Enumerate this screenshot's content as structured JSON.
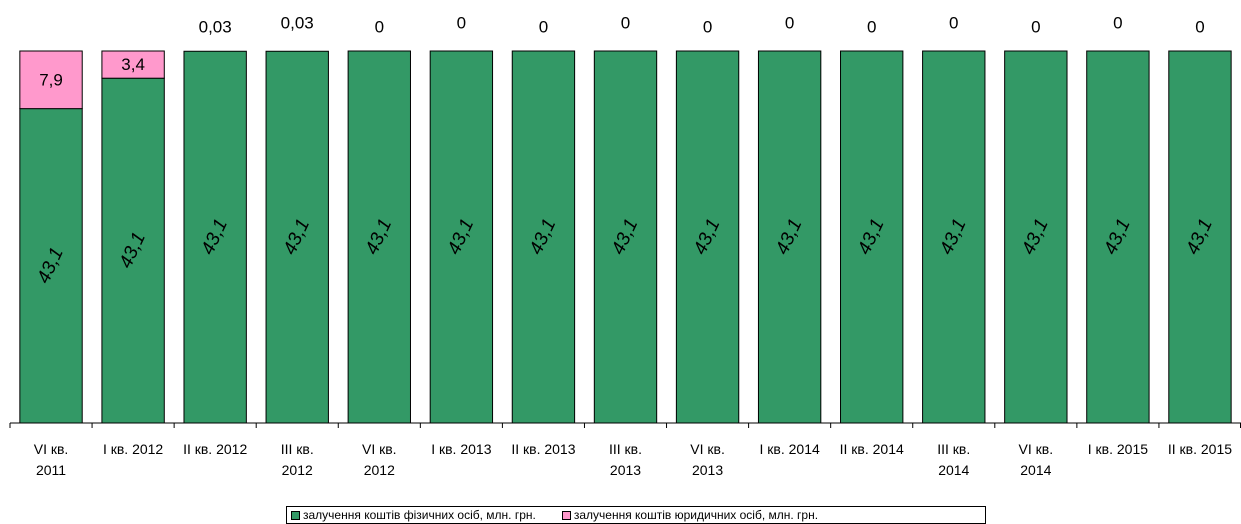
{
  "chart_data": {
    "type": "bar",
    "stacked": true,
    "categories": [
      "VI кв. 2011",
      "I кв. 2012",
      "II кв. 2012",
      "III кв. 2012",
      "VI кв. 2012",
      "I кв. 2013",
      "II кв. 2013",
      "III кв. 2013",
      "VI кв. 2013",
      "I кв. 2014",
      "II кв. 2014",
      "III кв. 2014",
      "VI кв. 2014",
      "I кв. 2015",
      "II кв. 2015"
    ],
    "category_lines": [
      [
        "VI кв.",
        "2011"
      ],
      [
        "I кв. 2012"
      ],
      [
        "II кв. 2012"
      ],
      [
        "III кв.",
        "2012"
      ],
      [
        "VI кв.",
        "2012"
      ],
      [
        "I кв. 2013"
      ],
      [
        "II кв. 2013"
      ],
      [
        "III кв.",
        "2013"
      ],
      [
        "VI кв.",
        "2013"
      ],
      [
        "I кв. 2014"
      ],
      [
        "II кв. 2014"
      ],
      [
        "III кв.",
        "2014"
      ],
      [
        "VI кв.",
        "2014"
      ],
      [
        "I кв. 2015"
      ],
      [
        "II кв. 2015"
      ]
    ],
    "series": [
      {
        "name": "залучення коштів фізичних осіб, млн. грн.",
        "color": "#339966",
        "values": [
          43.1,
          43.1,
          43.1,
          43.1,
          43.1,
          43.1,
          43.1,
          43.1,
          43.1,
          43.1,
          43.1,
          43.1,
          43.1,
          43.1,
          43.1
        ],
        "labels": [
          "43,1",
          "43,1",
          "43,1",
          "43,1",
          "43,1",
          "43,1",
          "43,1",
          "43,1",
          "43,1",
          "43,1",
          "43,1",
          "43,1",
          "43,1",
          "43,1",
          "43,1"
        ]
      },
      {
        "name": "залучення коштів юридичних осіб, млн. грн.",
        "color": "#FF99CC",
        "values": [
          7.9,
          3.4,
          0.03,
          0.03,
          0,
          0,
          0,
          0,
          0,
          0,
          0,
          0,
          0,
          0,
          0
        ],
        "labels": [
          "7,9",
          "3,4",
          "0,03",
          "0,03",
          "0",
          "0",
          "0",
          "0",
          "0",
          "0",
          "0",
          "0",
          "0",
          "0",
          "0"
        ]
      }
    ],
    "total_percent": 100,
    "title": "",
    "xlabel": "",
    "ylabel": "",
    "legend_position": "bottom",
    "grid": false
  }
}
